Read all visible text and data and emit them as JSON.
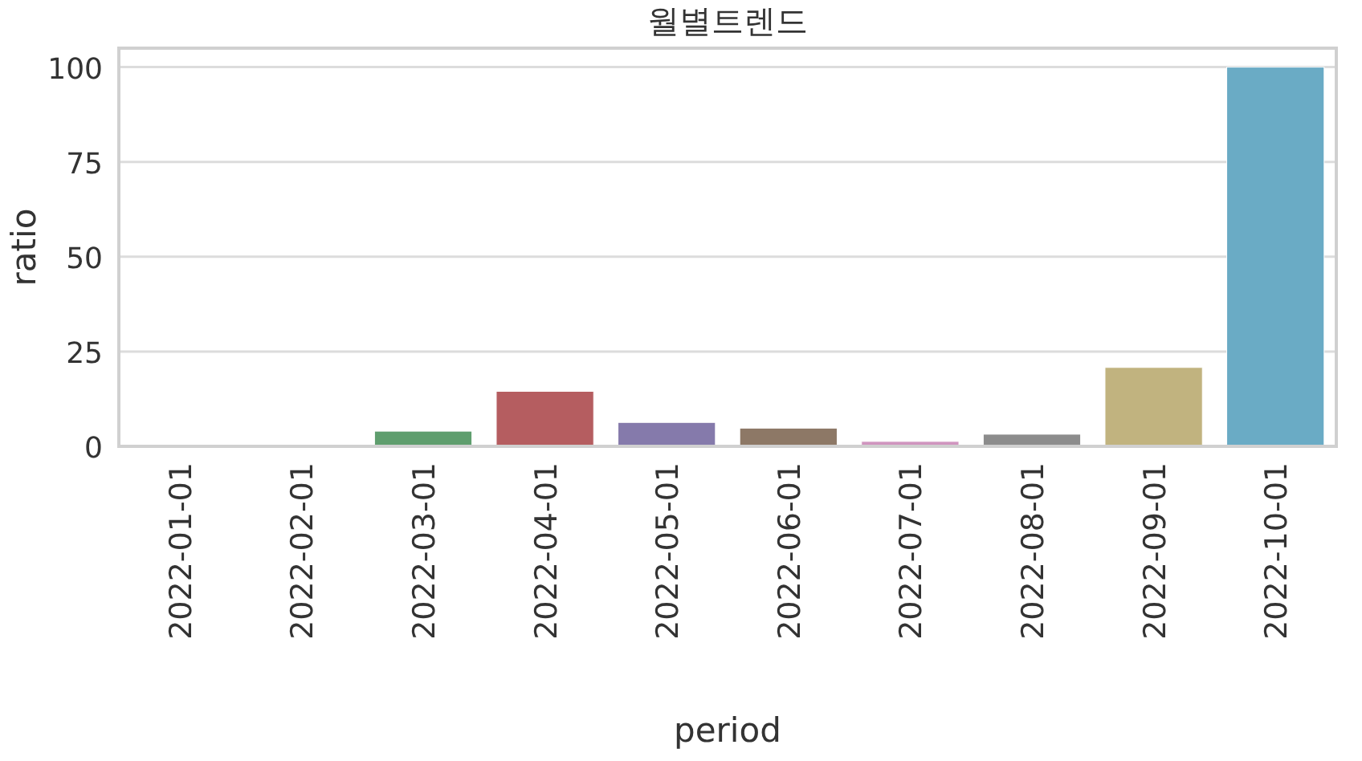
{
  "chart_data": {
    "type": "bar",
    "title": "월별트렌드",
    "xlabel": "period",
    "ylabel": "ratio",
    "categories": [
      "2022-01-01",
      "2022-02-01",
      "2022-03-01",
      "2022-04-01",
      "2022-05-01",
      "2022-06-01",
      "2022-07-01",
      "2022-08-01",
      "2022-09-01",
      "2022-10-01"
    ],
    "values": [
      0,
      0,
      4,
      14.5,
      6.3,
      4.8,
      1.3,
      3.2,
      20.8,
      100
    ],
    "colors": [
      "#5875a4",
      "#cc8963",
      "#5f9e6e",
      "#b55d60",
      "#857aab",
      "#8d7866",
      "#d095bf",
      "#8c8c8c",
      "#c1b37f",
      "#6aabc5"
    ],
    "ylim": [
      0,
      105
    ],
    "yticks": [
      0,
      25,
      50,
      75,
      100
    ],
    "grid": "y"
  }
}
